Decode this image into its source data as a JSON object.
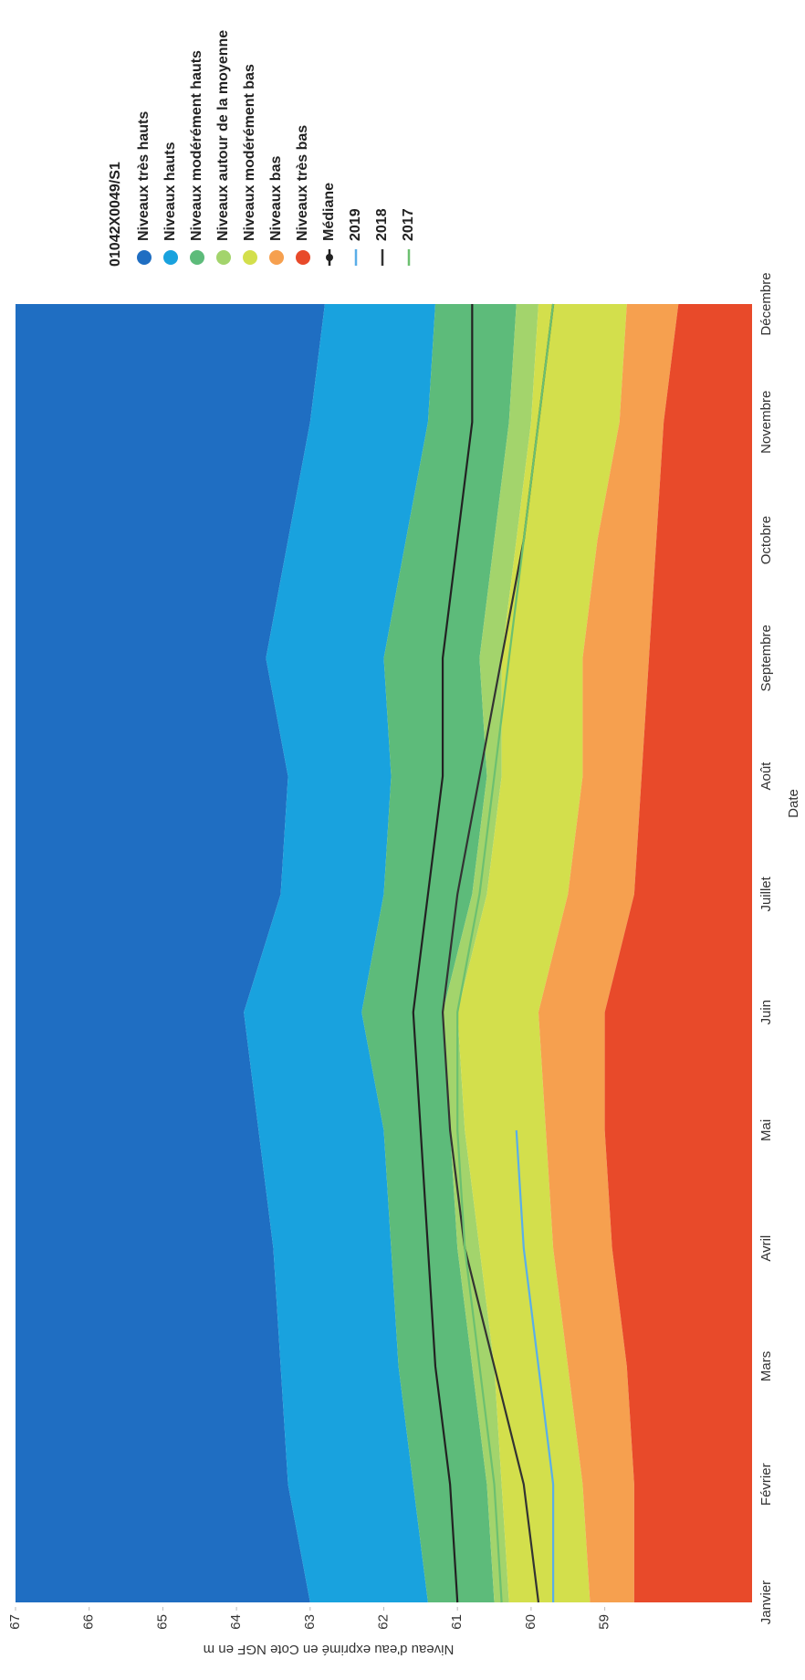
{
  "chart_data": {
    "type": "band-line",
    "legend_title": "01042X0049/S1",
    "xlabel": "Date",
    "ylabel": "Niveau d'eau exprimé en Cote NGF en m",
    "categories": [
      "Janvier",
      "Février",
      "Mars",
      "Avril",
      "Mai",
      "Juin",
      "Juillet",
      "Août",
      "Septembre",
      "Octobre",
      "Novembre",
      "Décembre"
    ],
    "ylim": [
      57,
      67
    ],
    "yticks": [
      59,
      60,
      61,
      62,
      63,
      64,
      65,
      66,
      67
    ],
    "legend": "right",
    "bands": [
      {
        "name": "Niveaux très hauts",
        "color": "#1f6ec2",
        "values": [
          63.0,
          63.3,
          63.4,
          63.5,
          63.7,
          63.9,
          63.4,
          63.3,
          63.6,
          63.3,
          63.0,
          62.8
        ]
      },
      {
        "name": "Niveaux hauts",
        "color": "#19a2de",
        "values": [
          61.4,
          61.6,
          61.8,
          61.9,
          62.0,
          62.3,
          62.0,
          61.9,
          62.0,
          61.7,
          61.4,
          61.3
        ]
      },
      {
        "name": "Niveaux modérément hauts",
        "color": "#5dbb7a",
        "values": [
          60.5,
          60.6,
          60.8,
          61.0,
          61.1,
          61.2,
          60.8,
          60.6,
          60.7,
          60.5,
          60.3,
          60.2
        ]
      },
      {
        "name": "Niveaux autour de la moyenne",
        "color": "#a3d46c",
        "values": [
          60.3,
          60.4,
          60.5,
          60.7,
          60.9,
          61.0,
          60.6,
          60.4,
          60.4,
          60.2,
          60.0,
          59.9
        ]
      },
      {
        "name": "Niveaux modérément bas",
        "color": "#d3df4c",
        "values": [
          59.2,
          59.3,
          59.5,
          59.7,
          59.8,
          59.9,
          59.5,
          59.3,
          59.3,
          59.1,
          58.8,
          58.7
        ]
      },
      {
        "name": "Niveaux bas",
        "color": "#f6a04f",
        "values": [
          58.6,
          58.6,
          58.7,
          58.9,
          59.0,
          59.0,
          58.6,
          58.5,
          58.4,
          58.3,
          58.2,
          58.0
        ]
      },
      {
        "name": "Niveaux très bas",
        "color": "#e84a2a"
      }
    ],
    "series": [
      {
        "name": "Médiane",
        "color": "#222222",
        "values": [
          61.0,
          61.1,
          61.3,
          61.4,
          61.5,
          61.6,
          61.4,
          61.2,
          61.2,
          61.0,
          60.8,
          60.8
        ]
      },
      {
        "name": "2019",
        "color": "#5aaee8",
        "values": [
          59.7,
          59.7,
          59.9,
          60.1,
          60.2,
          null,
          null,
          null,
          null,
          null,
          null,
          null
        ]
      },
      {
        "name": "2018",
        "color": "#333333",
        "values": [
          59.9,
          60.1,
          60.5,
          60.9,
          61.1,
          61.2,
          61.0,
          60.7,
          60.4,
          60.1,
          59.9,
          59.7
        ]
      },
      {
        "name": "2017",
        "color": "#6cc070",
        "values": [
          60.4,
          60.5,
          60.7,
          60.9,
          61.0,
          61.0,
          60.7,
          60.5,
          60.3,
          60.1,
          59.9,
          59.7
        ]
      }
    ]
  }
}
